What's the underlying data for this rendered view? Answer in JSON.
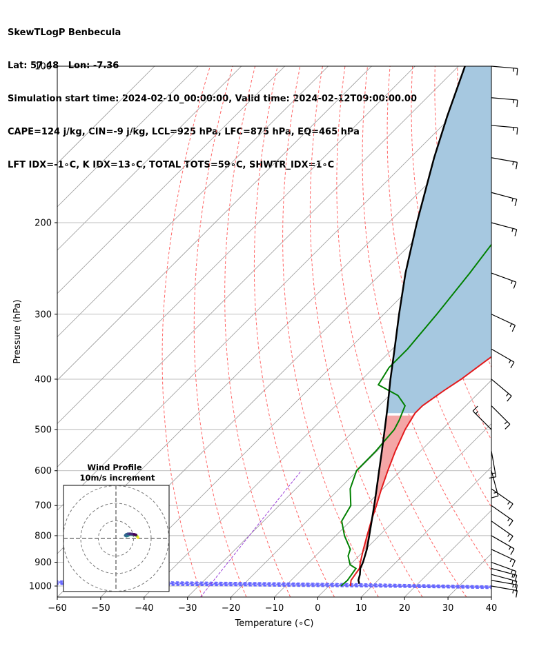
{
  "header": {
    "line1": "SkewTLogP Benbecula",
    "line2": "Lat: 57.48   Lon: -7.36",
    "line3": "Simulation start time: 2024-02-10_00:00:00, Valid time: 2024-02-12T09:00:00.00",
    "line4": "CAPE=124 j/kg, CIN=-9 j/kg, LCL=925 hPa, LFC=875 hPa, EQ=465 hPa",
    "line5": "LFT IDX=-1∘C, K IDX=13∘C, TOTAL TOTS=59∘C, SHWTR_IDX=1∘C"
  },
  "colors": {
    "temperature": "#e31a1c",
    "dewpoint": "#008000",
    "parcel": "#000000",
    "cape_fill": "#a6c8e0",
    "dry_adiabat": "#ff6666",
    "moist_adiabat": "#6666ff",
    "mixing_ratio": "#9a3dd8",
    "isotherm": "#999999",
    "isobar": "#aaaaaa"
  },
  "chart_data": [
    {
      "type": "skew-t",
      "xlabel": "Temperature (∘C)",
      "ylabel": "Pressure (hPa)",
      "xlim": [
        -60,
        40
      ],
      "ylim": [
        1050,
        100
      ],
      "y_scale": "log",
      "x_ticks": [
        "−60",
        "−50",
        "−40",
        "−30",
        "−20",
        "−10",
        "0",
        "10",
        "20",
        "30",
        "40"
      ],
      "x_tick_values": [
        -60,
        -50,
        -40,
        -30,
        -20,
        -10,
        0,
        10,
        20,
        30,
        40
      ],
      "y_ticks": [
        "1000",
        "900",
        "800",
        "700",
        "600",
        "500",
        "400",
        "300",
        "200",
        "100"
      ],
      "y_tick_values": [
        1000,
        900,
        800,
        700,
        600,
        500,
        400,
        300,
        200,
        100
      ],
      "grid": true,
      "series": [
        {
          "key": "temperature",
          "points": [
            [
              1000,
              5
            ],
            [
              975,
              3.8
            ],
            [
              925,
              3
            ],
            [
              900,
              1.8
            ],
            [
              850,
              -0.5
            ],
            [
              800,
              -2.8
            ],
            [
              750,
              -5.2
            ],
            [
              700,
              -7.6
            ],
            [
              650,
              -10.3
            ],
            [
              600,
              -13
            ],
            [
              550,
              -15.8
            ],
            [
              500,
              -18.5
            ],
            [
              465,
              -20
            ],
            [
              450,
              -20
            ],
            [
              420,
              -18.5
            ],
            [
              400,
              -17.2
            ],
            [
              370,
              -15.8
            ],
            [
              350,
              -14.7
            ],
            [
              320,
              -13.2
            ],
            [
              300,
              -12
            ],
            [
              275,
              -10.4
            ],
            [
              250,
              -8.6
            ],
            [
              225,
              -6.6
            ],
            [
              200,
              -4.5
            ],
            [
              175,
              -2.4
            ],
            [
              150,
              -0.6
            ],
            [
              125,
              1.8
            ],
            [
              100,
              4.6
            ]
          ]
        },
        {
          "key": "dewpoint",
          "points": [
            [
              1000,
              2.8
            ],
            [
              975,
              3
            ],
            [
              925,
              2.2
            ],
            [
              910,
              0
            ],
            [
              875,
              -2.5
            ],
            [
              850,
              -3.5
            ],
            [
              800,
              -8
            ],
            [
              750,
              -12
            ],
            [
              700,
              -13.5
            ],
            [
              650,
              -17.5
            ],
            [
              600,
              -20.2
            ],
            [
              550,
              -20.3
            ],
            [
              500,
              -21
            ],
            [
              480,
              -22
            ],
            [
              450,
              -24
            ],
            [
              430,
              -28
            ],
            [
              410,
              -35
            ],
            [
              380,
              -36.5
            ],
            [
              350,
              -36.5
            ],
            [
              300,
              -37.8
            ],
            [
              250,
              -39.7
            ],
            [
              200,
              -42.5
            ],
            [
              190,
              -42.5
            ],
            [
              180,
              -42
            ],
            [
              150,
              -40
            ],
            [
              125,
              -37
            ],
            [
              100,
              -33
            ]
          ]
        },
        {
          "key": "parcel",
          "points": [
            [
              990,
              6.5
            ],
            [
              975,
              5.5
            ],
            [
              950,
              4.5
            ],
            [
              925,
              3.2
            ],
            [
              900,
              2.4
            ],
            [
              850,
              0.3
            ],
            [
              800,
              -2.3
            ],
            [
              750,
              -5.1
            ],
            [
              700,
              -8.1
            ],
            [
              650,
              -11.4
            ],
            [
              600,
              -15
            ],
            [
              550,
              -18.9
            ],
            [
              500,
              -23.2
            ],
            [
              465,
              -26.5
            ],
            [
              450,
              -28
            ],
            [
              400,
              -33.5
            ],
            [
              350,
              -39.5
            ],
            [
              300,
              -46.5
            ],
            [
              250,
              -54.5
            ],
            [
              200,
              -63.5
            ],
            [
              150,
              -74.5
            ],
            [
              125,
              -81
            ],
            [
              100,
              -88.5
            ]
          ]
        }
      ],
      "wind_barbs": [
        {
          "p": 1000,
          "speed_kt": 15,
          "dir": 280
        },
        {
          "p": 975,
          "speed_kt": 15,
          "dir": 280
        },
        {
          "p": 950,
          "speed_kt": 15,
          "dir": 285
        },
        {
          "p": 925,
          "speed_kt": 15,
          "dir": 285
        },
        {
          "p": 900,
          "speed_kt": 15,
          "dir": 290
        },
        {
          "p": 850,
          "speed_kt": 15,
          "dir": 295
        },
        {
          "p": 800,
          "speed_kt": 15,
          "dir": 300
        },
        {
          "p": 750,
          "speed_kt": 15,
          "dir": 305
        },
        {
          "p": 700,
          "speed_kt": 15,
          "dir": 305
        },
        {
          "p": 650,
          "speed_kt": 15,
          "dir": 305
        },
        {
          "p": 600,
          "speed_kt": 15,
          "dir": 345
        },
        {
          "p": 550,
          "speed_kt": 15,
          "dir": 350
        },
        {
          "p": 500,
          "speed_kt": 15,
          "dir": 135
        },
        {
          "p": 450,
          "speed_kt": 15,
          "dir": 315
        },
        {
          "p": 400,
          "speed_kt": 15,
          "dir": 310
        },
        {
          "p": 350,
          "speed_kt": 15,
          "dir": 300
        },
        {
          "p": 300,
          "speed_kt": 15,
          "dir": 295
        },
        {
          "p": 250,
          "speed_kt": 15,
          "dir": 290
        },
        {
          "p": 200,
          "speed_kt": 15,
          "dir": 285
        },
        {
          "p": 175,
          "speed_kt": 15,
          "dir": 285
        },
        {
          "p": 150,
          "speed_kt": 15,
          "dir": 280
        },
        {
          "p": 130,
          "speed_kt": 15,
          "dir": 275
        },
        {
          "p": 115,
          "speed_kt": 15,
          "dir": 275
        },
        {
          "p": 100,
          "speed_kt": 15,
          "dir": 275
        }
      ]
    },
    {
      "type": "hodograph",
      "title": "Wind Profile",
      "subtitle": "10m/s increment",
      "ring_increment_ms": 10,
      "rings": 3,
      "grid": true,
      "points": [
        [
          6.5,
          -0.5
        ],
        [
          5.5,
          1
        ],
        [
          4.5,
          1.8
        ],
        [
          3,
          2
        ],
        [
          1.5,
          2.2
        ],
        [
          0,
          2.5
        ],
        [
          -1.5,
          2.3
        ],
        [
          -3,
          1.5
        ],
        [
          -4.5,
          1
        ],
        [
          -5.5,
          1.5
        ],
        [
          -4.5,
          2.5
        ],
        [
          -3,
          3
        ],
        [
          -1,
          3
        ],
        [
          1,
          2.8
        ],
        [
          3,
          2.5
        ],
        [
          4.5,
          2
        ]
      ]
    }
  ]
}
